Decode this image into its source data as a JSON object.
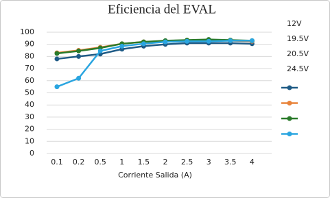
{
  "chart_data": {
    "type": "line",
    "title": "Eficiencia del EVAL",
    "x_label": "Corriente  Salida (A)",
    "categories": [
      "0.1",
      "0.2",
      "0.5",
      "1",
      "1.5",
      "2",
      "2.5",
      "3",
      "3.5",
      "4"
    ],
    "series": [
      {
        "name": "12V",
        "color": "#1f5b86",
        "values": [
          78,
          80,
          82,
          86,
          88.5,
          90,
          91,
          91,
          91,
          90.5
        ]
      },
      {
        "name": "19.5V",
        "color": "#e8833a",
        "values": [
          83,
          85,
          87.5,
          90.5,
          92,
          92.5,
          93,
          93,
          93,
          92.5
        ]
      },
      {
        "name": "20.5V",
        "color": "#2a7a2a",
        "values": [
          82.5,
          84.5,
          87,
          90.5,
          92,
          93,
          93.5,
          94,
          93.5,
          93
        ]
      },
      {
        "name": "24.5V",
        "color": "#2aa5e0",
        "values": [
          55,
          62,
          84.5,
          88.5,
          90.5,
          92,
          92.5,
          92.5,
          93,
          93
        ]
      }
    ],
    "ylim": [
      0,
      100
    ],
    "yticks": [
      0,
      10,
      20,
      30,
      40,
      50,
      60,
      70,
      80,
      90,
      100
    ],
    "grid": true,
    "legend": "right"
  }
}
